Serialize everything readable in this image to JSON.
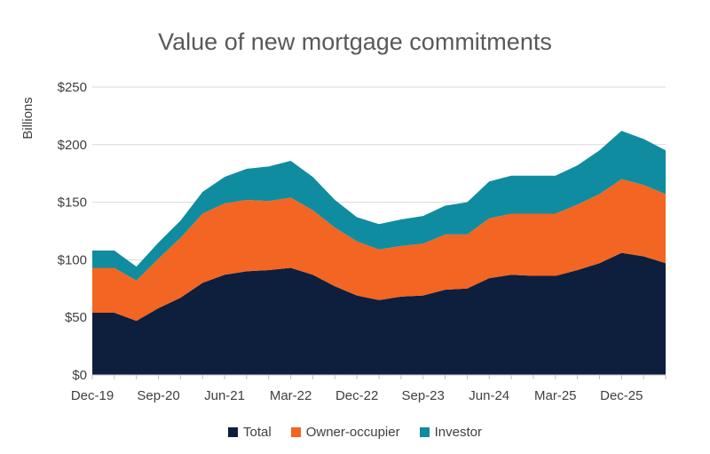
{
  "chart_data": {
    "type": "area",
    "title": "Value of new mortgage commitments",
    "xlabel": "",
    "ylabel": "Billions",
    "ylim": [
      0,
      250
    ],
    "yticks": [
      0,
      50,
      100,
      150,
      200,
      250
    ],
    "ytick_labels": [
      "$0",
      "$50",
      "$100",
      "$150",
      "$200",
      "$250"
    ],
    "xtick_labels": [
      "Dec-19",
      "Sep-20",
      "Jun-21",
      "Mar-22",
      "Dec-22",
      "Sep-23",
      "Jun-24",
      "Mar-25",
      "Dec-25"
    ],
    "xtick_every": 3,
    "x": [
      "Dec-19",
      "Mar-20",
      "Jun-20",
      "Sep-20",
      "Dec-20",
      "Mar-21",
      "Jun-21",
      "Sep-21",
      "Dec-21",
      "Mar-22",
      "Jun-22",
      "Sep-22",
      "Dec-22",
      "Mar-23",
      "Jun-23",
      "Sep-23",
      "Dec-23",
      "Mar-24",
      "Jun-24",
      "Sep-24",
      "Dec-24",
      "Mar-25",
      "Jun-25",
      "Sep-25",
      "Dec-25",
      "Mar-26",
      "Jun-26"
    ],
    "stacked": true,
    "grid": true,
    "legend_position": "bottom",
    "series": [
      {
        "name": "Total",
        "color": "#0d1f3c",
        "values": [
          54,
          54,
          47,
          58,
          67,
          80,
          87,
          90,
          91,
          93,
          87,
          77,
          69,
          65,
          68,
          69,
          74,
          75,
          84,
          87,
          86,
          86,
          91,
          97,
          106,
          103,
          97
        ]
      },
      {
        "name": "Owner-occupier",
        "color": "#f26522",
        "values": [
          39,
          39,
          35,
          43,
          52,
          60,
          62,
          62,
          60,
          61,
          56,
          51,
          47,
          44,
          44,
          45,
          48,
          47,
          52,
          53,
          54,
          54,
          57,
          60,
          64,
          62,
          60
        ]
      },
      {
        "name": "Investor",
        "color": "#0f8ca0",
        "values": [
          15,
          15,
          12,
          14,
          15,
          19,
          23,
          27,
          30,
          32,
          29,
          24,
          21,
          22,
          23,
          24,
          25,
          28,
          32,
          33,
          33,
          33,
          34,
          38,
          42,
          40,
          38
        ]
      }
    ]
  }
}
